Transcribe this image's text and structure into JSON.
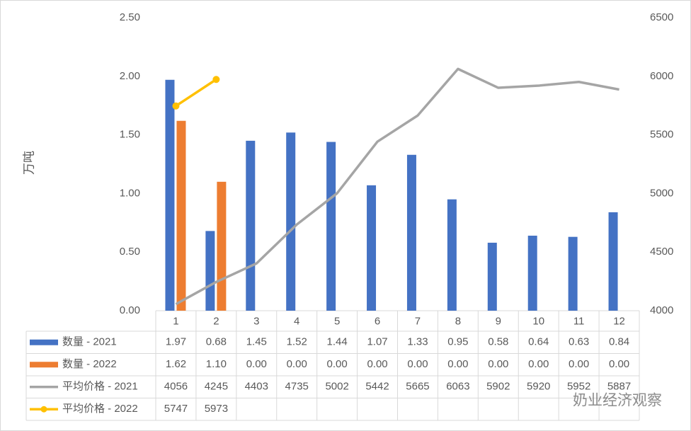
{
  "chart_data": {
    "type": "bar-line-table",
    "y_label": "万吨",
    "categories": [
      "1",
      "2",
      "3",
      "4",
      "5",
      "6",
      "7",
      "8",
      "9",
      "10",
      "11",
      "12"
    ],
    "ylim": [
      0,
      2.5
    ],
    "yticks": [
      {
        "value": 0,
        "label": "0.00"
      },
      {
        "value": 0.5,
        "label": "0.50"
      },
      {
        "value": 1,
        "label": "1.00"
      },
      {
        "value": 1.5,
        "label": "1.50"
      },
      {
        "value": 2,
        "label": "2.00"
      },
      {
        "value": 2.5,
        "label": "2.50"
      }
    ],
    "y2lim": [
      4000,
      6500
    ],
    "y2ticks": [
      4000,
      4500,
      5000,
      5500,
      6000,
      6500
    ],
    "series": [
      {
        "name": "数量 - 2021",
        "kind": "bar",
        "color": "#4472c4",
        "values": [
          1.97,
          0.68,
          1.45,
          1.52,
          1.44,
          1.07,
          1.33,
          0.95,
          0.58,
          0.64,
          0.63,
          0.84
        ],
        "value_labels": [
          "1.97",
          "0.68",
          "1.45",
          "1.52",
          "1.44",
          "1.07",
          "1.33",
          "0.95",
          "0.58",
          "0.64",
          "0.63",
          "0.84"
        ]
      },
      {
        "name": "数量 - 2022",
        "kind": "bar",
        "color": "#ed7d31",
        "values": [
          1.62,
          1.1,
          0,
          0,
          0,
          0,
          0,
          0,
          0,
          0,
          0,
          0
        ],
        "value_labels": [
          "1.62",
          "1.10",
          "0.00",
          "0.00",
          "0.00",
          "0.00",
          "0.00",
          "0.00",
          "0.00",
          "0.00",
          "0.00",
          "0.00"
        ]
      },
      {
        "name": "平均价格 - 2021",
        "kind": "line",
        "axis": "y2",
        "color": "#a5a5a5",
        "values": [
          4056,
          4245,
          4403,
          4735,
          5002,
          5442,
          5665,
          6063,
          5902,
          5920,
          5952,
          5887
        ]
      },
      {
        "name": "平均价格 - 2022",
        "kind": "line",
        "axis": "y2",
        "color": "#ffc000",
        "marker": true,
        "values": [
          5747,
          5973,
          null,
          null,
          null,
          null,
          null,
          null,
          null,
          null,
          null,
          null
        ]
      }
    ],
    "watermark": "奶业经济观察"
  }
}
